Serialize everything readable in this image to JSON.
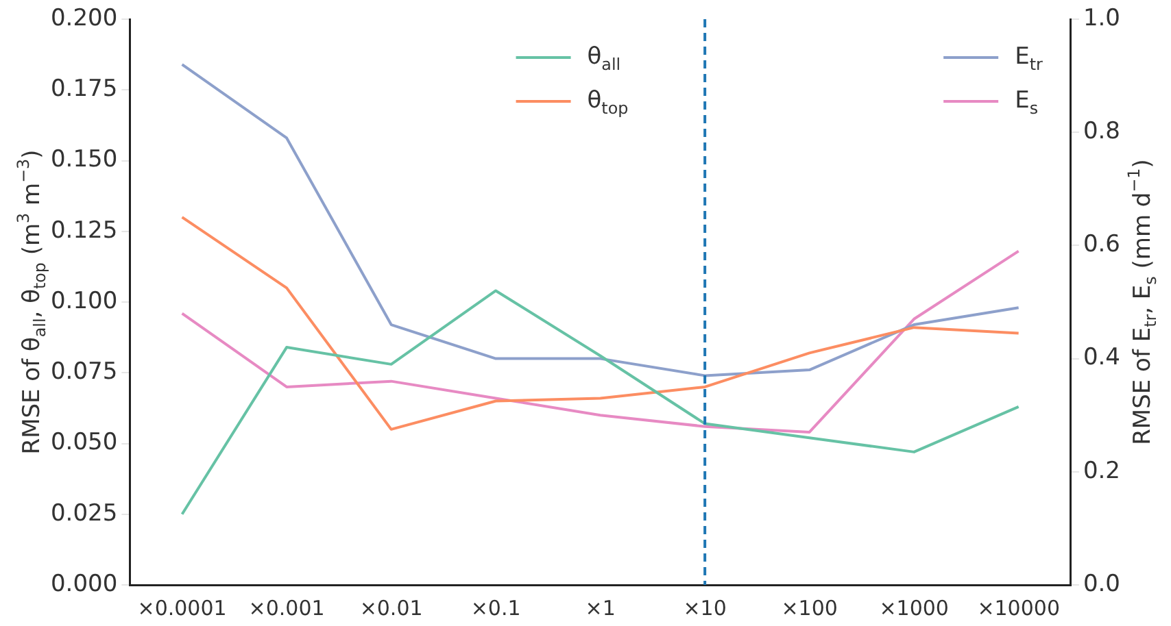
{
  "chart_data": {
    "type": "line",
    "categories": [
      "×0.0001",
      "×0.001",
      "×0.01",
      "×0.1",
      "×1",
      "×10",
      "×100",
      "×1000",
      "×10000"
    ],
    "ylabel": "RMSE of θ$_{all}$, θ$_{top}$ (m$^{3}$ m$^{−3}$)",
    "y2label": "RMSE of E$_{tr}$, E$_{s}$ (mm d$^{−1}$)",
    "ylim": [
      0,
      0.2
    ],
    "yticks": [
      {
        "value": 0,
        "label": "0.000"
      },
      {
        "value": 0.025,
        "label": "0.025"
      },
      {
        "value": 0.05,
        "label": "0.050"
      },
      {
        "value": 0.075,
        "label": "0.075"
      },
      {
        "value": 0.1,
        "label": "0.100"
      },
      {
        "value": 0.125,
        "label": "0.125"
      },
      {
        "value": 0.15,
        "label": "0.150"
      },
      {
        "value": 0.175,
        "label": "0.175"
      },
      {
        "value": 0.2,
        "label": "0.200"
      }
    ],
    "y2lim": [
      0,
      1
    ],
    "y2ticks": [
      {
        "value": 0,
        "label": "0.0"
      },
      {
        "value": 0.2,
        "label": "0.2"
      },
      {
        "value": 0.4,
        "label": "0.4"
      },
      {
        "value": 0.6,
        "label": "0.6"
      },
      {
        "value": 0.8,
        "label": "0.8"
      },
      {
        "value": 1,
        "label": "1.0"
      }
    ],
    "series": [
      {
        "name": "θ$_{all}$",
        "color": "#66c2a5",
        "values": [
          0.025,
          0.084,
          0.078,
          0.104,
          0.081,
          0.057,
          0.052,
          0.047,
          0.063
        ]
      },
      {
        "name": "θ$_{top}$",
        "color": "#fc8d62",
        "values": [
          0.13,
          0.105,
          0.055,
          0.065,
          0.066,
          0.07,
          0.082,
          0.091,
          0.089
        ]
      },
      {
        "name": "E$_{tr}$",
        "color": "#8da0cb",
        "axis": "y2",
        "values": [
          0.92,
          0.79,
          0.46,
          0.4,
          0.4,
          0.37,
          0.38,
          0.46,
          0.49
        ]
      },
      {
        "name": "E$_{s}$",
        "color": "#e78ac3",
        "axis": "y2",
        "values": [
          0.48,
          0.35,
          0.36,
          0.33,
          0.3,
          0.28,
          0.27,
          0.47,
          0.59
        ]
      }
    ],
    "ref_lines": [
      {
        "axis": "x",
        "value": "×10",
        "color": "#1f77b4",
        "line_style": "dashed"
      }
    ],
    "legend": "top right",
    "grid": false,
    "marker": "none",
    "line_style": "solid"
  }
}
